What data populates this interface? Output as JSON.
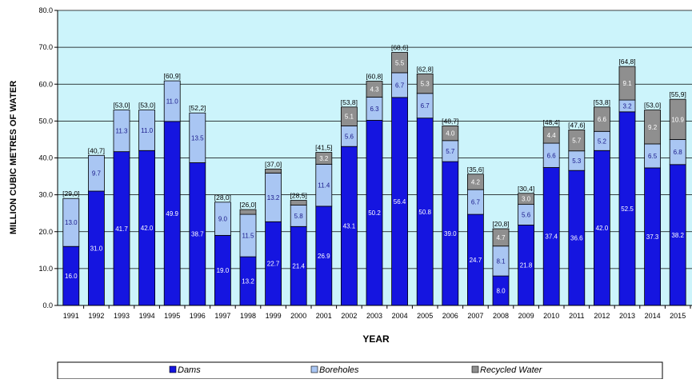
{
  "chart_data": {
    "type": "bar",
    "stacked": true,
    "xlabel": "YEAR",
    "ylabel": "MILLION CUBIC METRES OF WATER",
    "ylim": [
      0,
      80
    ],
    "yticks": [
      "0.0",
      "10.0",
      "20.0",
      "30.0",
      "40.0",
      "50.0",
      "60.0",
      "70.0",
      "80.0"
    ],
    "grid": true,
    "legend_position": "bottom",
    "plot_background": "#ccf4fb",
    "categories": [
      "1991",
      "1992",
      "1993",
      "1994",
      "1995",
      "1996",
      "1997",
      "1998",
      "1999",
      "2000",
      "2001",
      "2002",
      "2003",
      "2004",
      "2005",
      "2006",
      "2007",
      "2008",
      "2009",
      "2010",
      "2011",
      "2012",
      "2013",
      "2014",
      "2015"
    ],
    "totals": [
      "[29,0]",
      "[40,7]",
      "[53,0]",
      "[53,0]",
      "[60,9]",
      "[52,2]",
      "[28,0]",
      "[26,0]",
      "[37,0]",
      "[28,5]",
      "[41,5]",
      "[53,8]",
      "[60,8]",
      "[68,6]",
      "[62,8]",
      "[48,7]",
      "[35,6]",
      "[20,8]",
      "[30,4]",
      "[48,4]",
      "[47,6]",
      "[53,8]",
      "[64,8]",
      "[53,0]",
      "[55,9]"
    ],
    "series": [
      {
        "name": "Dams",
        "color": "#1515e0",
        "label_color": "#ffffff",
        "values": [
          16.0,
          31.0,
          41.7,
          42.0,
          49.9,
          38.7,
          19.0,
          13.2,
          22.7,
          21.4,
          26.9,
          43.1,
          50.2,
          56.4,
          50.8,
          39.0,
          24.7,
          8.0,
          21.8,
          37.4,
          36.6,
          42.0,
          52.5,
          37.3,
          38.2
        ],
        "labels": [
          "16.0",
          "31.0",
          "41.7",
          "42.0",
          "49.9",
          "38.7",
          "19.0",
          "13.2",
          "22.7",
          "21.4",
          "26.9",
          "43.1",
          "50.2",
          "56.4",
          "50.8",
          "39.0",
          "24.7",
          "8.0",
          "21.8",
          "37.4",
          "36.6",
          "42.0",
          "52.5",
          "37.3",
          "38.2"
        ]
      },
      {
        "name": "Boreholes",
        "color": "#a9c6f3",
        "label_color": "#1a1a8a",
        "values": [
          13.0,
          9.7,
          11.3,
          11.0,
          11.0,
          13.5,
          9.0,
          11.5,
          13.2,
          5.8,
          11.4,
          5.6,
          6.3,
          6.7,
          6.7,
          5.7,
          6.7,
          8.1,
          5.6,
          6.6,
          5.3,
          5.2,
          3.2,
          6.5,
          6.8
        ],
        "labels": [
          "13.0",
          "9.7",
          "11.3",
          "11.0",
          "11.0",
          "13.5",
          "9.0",
          "11.5",
          "13.2",
          "5.8",
          "11.4",
          "5.6",
          "6.3",
          "6.7",
          "6.7",
          "5.7",
          "6.7",
          "8.1",
          "5.6",
          "6.6",
          "5.3",
          "5.2",
          "3.2",
          "6.5",
          "6.8"
        ]
      },
      {
        "name": "Recycled Water",
        "color": "#8f8f8f",
        "label_color": "#ffffff",
        "values": [
          0,
          0,
          0,
          0,
          0,
          0,
          0,
          1.3,
          1.1,
          1.3,
          3.2,
          5.1,
          4.3,
          5.5,
          5.3,
          4.0,
          4.2,
          4.7,
          3.0,
          4.4,
          5.7,
          6.6,
          9.1,
          9.2,
          10.9
        ],
        "labels": [
          "",
          "",
          "",
          "",
          "",
          "",
          "",
          "",
          "",
          "",
          "3.2",
          "5.1",
          "4.3",
          "5.5",
          "5.3",
          "4.0",
          "4.2",
          "4.7",
          "3.0",
          "4.4",
          "5.7",
          "6.6",
          "9.1",
          "9.2",
          "10.9"
        ]
      }
    ]
  }
}
